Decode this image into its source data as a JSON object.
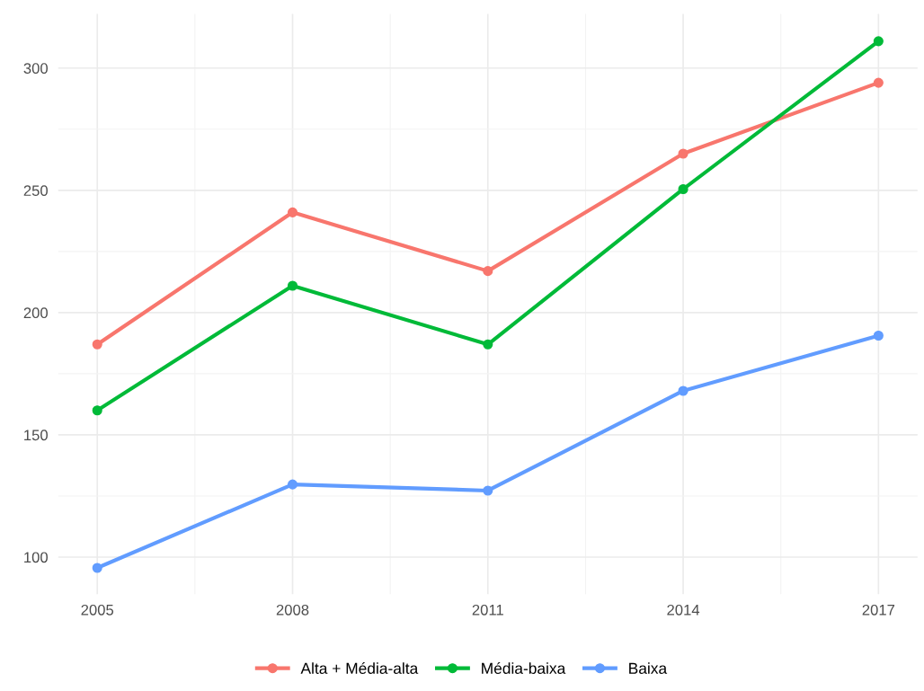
{
  "chart_data": {
    "type": "line",
    "x": [
      2005,
      2008,
      2011,
      2014,
      2017
    ],
    "series": [
      {
        "name": "Alta + Média-alta",
        "color": "#f8766d",
        "values": [
          187,
          241,
          217,
          265,
          294
        ]
      },
      {
        "name": "Média-baixa",
        "color": "#00ba38",
        "values": [
          160,
          211,
          187,
          250.5,
          311
        ]
      },
      {
        "name": "Baixa",
        "color": "#619cff",
        "values": [
          95.6,
          129.7,
          127.2,
          168,
          190.6
        ]
      }
    ],
    "xlim": [
      2004.4,
      2017.6
    ],
    "xticks": [
      2005,
      2008,
      2011,
      2014,
      2017
    ],
    "ylim": [
      84.8,
      322.2
    ],
    "yticks": [
      100,
      150,
      200,
      250,
      300
    ],
    "grid": true,
    "legend": "bottom",
    "marker": "circle",
    "line_style": "solid"
  }
}
